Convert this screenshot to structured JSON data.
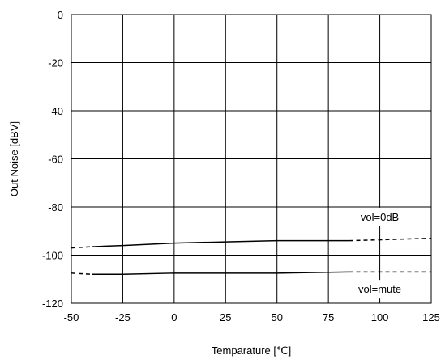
{
  "chart_data": {
    "type": "line",
    "xlabel": "Temparature [℃]",
    "ylabel": "Out Noise [dBV]",
    "xlim": [
      -50,
      125
    ],
    "ylim": [
      -120,
      0
    ],
    "x_ticks": [
      -50,
      -25,
      0,
      25,
      50,
      75,
      100,
      125
    ],
    "y_ticks": [
      0,
      -20,
      -40,
      -60,
      -80,
      -100,
      -120
    ],
    "x_tick_labels": [
      "-50",
      "-25",
      "0",
      "25",
      "50",
      "75",
      "100",
      "125"
    ],
    "y_tick_labels": [
      "0",
      "-20",
      "-40",
      "-60",
      "-80",
      "-100",
      "-120"
    ],
    "grid": true,
    "series": [
      {
        "name": "vol=0dB",
        "solid": {
          "x": [
            -40,
            -25,
            0,
            25,
            50,
            85
          ],
          "y": [
            -96.5,
            -96,
            -95,
            -94.5,
            -94,
            -94
          ]
        },
        "dashed_left": {
          "x": [
            -50,
            -40
          ],
          "y": [
            -97,
            -96.5
          ]
        },
        "dashed_right": {
          "x": [
            85,
            125
          ],
          "y": [
            -94,
            -93
          ]
        }
      },
      {
        "name": "vol=mute",
        "solid": {
          "x": [
            -40,
            -25,
            0,
            25,
            50,
            85
          ],
          "y": [
            -108,
            -108,
            -107.5,
            -107.5,
            -107.5,
            -107
          ]
        },
        "dashed_left": {
          "x": [
            -50,
            -40
          ],
          "y": [
            -107.5,
            -108
          ]
        },
        "dashed_right": {
          "x": [
            85,
            125
          ],
          "y": [
            -107,
            -107
          ]
        }
      }
    ],
    "annotations": [
      {
        "text": "vol=0dB",
        "x": 100,
        "y": -84,
        "series": 0
      },
      {
        "text": "vol=mute",
        "x": 100,
        "y": -114,
        "series": 1
      }
    ],
    "color": "#000000"
  }
}
